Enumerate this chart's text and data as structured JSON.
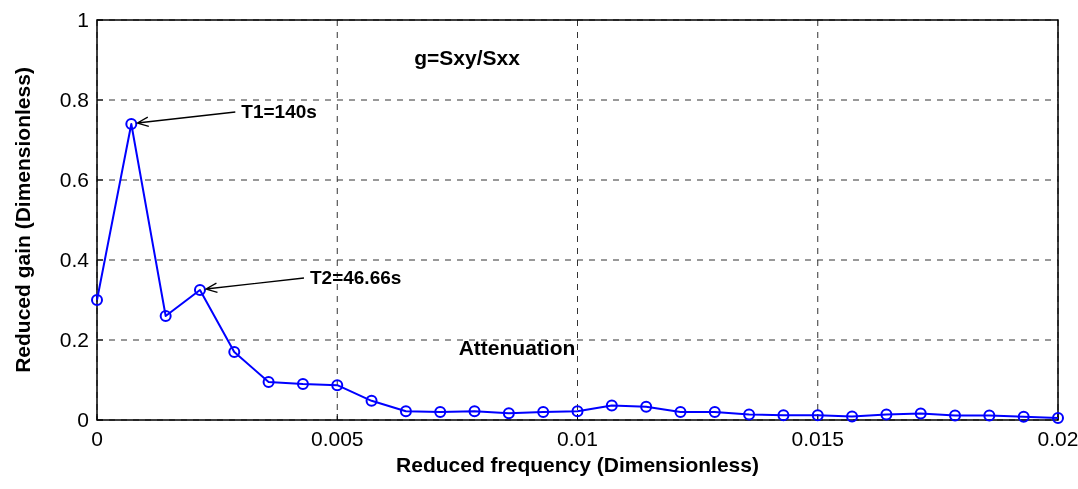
{
  "chart_data": {
    "type": "line",
    "xlabel": "Reduced frequency (Dimensionless)",
    "ylabel": "Reduced gain (Dimensionless)",
    "x": [
      0,
      0.000714,
      0.001429,
      0.002143,
      0.002857,
      0.003571,
      0.004286,
      0.005,
      0.005714,
      0.006429,
      0.007143,
      0.007857,
      0.008571,
      0.009286,
      0.01,
      0.010714,
      0.011429,
      0.012143,
      0.012857,
      0.013571,
      0.014286,
      0.015,
      0.015714,
      0.016429,
      0.017143,
      0.017857,
      0.018571,
      0.019286,
      0.02
    ],
    "series": [
      {
        "color": "#0000ff",
        "values": [
          0.3,
          0.74,
          0.26,
          0.325,
          0.17,
          0.095,
          0.09,
          0.087,
          0.048,
          0.022,
          0.02,
          0.022,
          0.017,
          0.02,
          0.022,
          0.036,
          0.033,
          0.02,
          0.02,
          0.014,
          0.012,
          0.012,
          0.009,
          0.014,
          0.016,
          0.011,
          0.011,
          0.008,
          0.005
        ]
      }
    ],
    "xlim": [
      0,
      0.02
    ],
    "xticks": [
      0,
      0.005,
      0.01,
      0.015,
      0.02
    ],
    "ylim": [
      0,
      1
    ],
    "yticks": [
      0,
      0.2,
      0.4,
      0.6,
      0.8,
      1
    ],
    "grid": true,
    "marker": "circle",
    "line_style": "solid",
    "annotations": [
      "g=Sxy/Sxx",
      {
        "text": "T1=140s",
        "x": 0.000714,
        "y": 0.74
      },
      {
        "text": "T2=46.66s",
        "x": 0.002143,
        "y": 0.325
      },
      "Attenuation"
    ]
  }
}
